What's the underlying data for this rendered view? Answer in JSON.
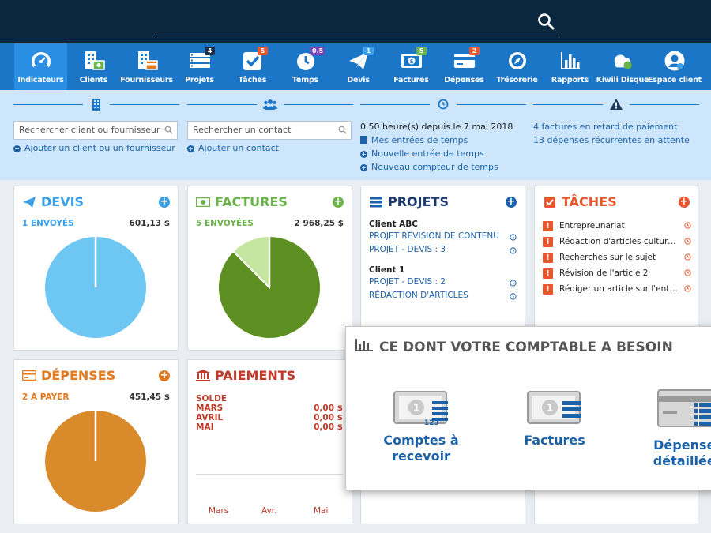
{
  "topbar": {
    "search_icon": "search-icon"
  },
  "nav": {
    "items": [
      {
        "label": "Indicateurs",
        "icon": "gauge-icon",
        "active": true,
        "badge": ""
      },
      {
        "label": "Clients",
        "icon": "building-money-icon",
        "badge": ""
      },
      {
        "label": "Fournisseurs",
        "icon": "building-card-icon",
        "badge": ""
      },
      {
        "label": "Projets",
        "icon": "stack-icon",
        "badge": "4"
      },
      {
        "label": "Tâches",
        "icon": "checkbox-icon",
        "badge": "5"
      },
      {
        "label": "Temps",
        "icon": "clock-icon",
        "badge": "0.5"
      },
      {
        "label": "Devis",
        "icon": "paper-plane-icon",
        "badge": "1"
      },
      {
        "label": "Factures",
        "icon": "invoice-icon",
        "badge": "5"
      },
      {
        "label": "Dépenses",
        "icon": "credit-card-icon",
        "badge": "2"
      },
      {
        "label": "Trésorerie",
        "icon": "compass-icon",
        "badge": ""
      },
      {
        "label": "Rapports",
        "icon": "bar-chart-icon",
        "badge": ""
      },
      {
        "label": "Kiwili Disque",
        "icon": "cloud-icon",
        "badge": ""
      },
      {
        "label": "Espace client",
        "icon": "user-circle-icon",
        "badge": ""
      }
    ],
    "badge_colors": {
      "projets": "#1a2e4a",
      "taches": "#e9552c",
      "temps": "#7b3fb5",
      "devis": "#3ba0e8",
      "factures": "#6ab34a",
      "depenses": "#e9552c"
    }
  },
  "quick": {
    "client_search_placeholder": "Rechercher client ou fournisseur",
    "add_client": "Ajouter un client ou un fournisseur",
    "contact_search_placeholder": "Rechercher un contact",
    "add_contact": "Ajouter un contact",
    "time_summary": "0.50 heure(s) depuis le 7 mai 2018",
    "time_entries": "Mes entrées de temps",
    "new_time_entry": "Nouvelle entrée de temps",
    "new_time_counter": "Nouveau compteur de temps",
    "late_invoices": "4 factures en retard de paiement",
    "recurring_expenses": "13 dépenses récurrentes en attente"
  },
  "devis": {
    "title": "DEVIS",
    "sub": "1 ENVOYÉS",
    "amount": "601,13 $",
    "color": "#3ba0e8"
  },
  "factures": {
    "title": "FACTURES",
    "sub": "5 ENVOYÉES",
    "amount": "2 968,25 $",
    "color": "#6ab34a"
  },
  "projets": {
    "title": "PROJETS",
    "groups": [
      {
        "client": "Client ABC",
        "items": [
          "PROJET RÉVISION DE CONTENU",
          "PROJET - DEVIS : 3"
        ]
      },
      {
        "client": "Client 1",
        "items": [
          "PROJET - DEVIS : 2",
          "RÉDACTION D'ARTICLES"
        ]
      }
    ]
  },
  "taches": {
    "title": "TÂCHES",
    "items": [
      "Entrepreunariat",
      "Rédaction d'articles culturels",
      "Recherches sur le sujet",
      "Révision de l'article 2",
      "Rédiger un article sur l'entreprise"
    ]
  },
  "depenses": {
    "title": "DÉPENSES",
    "sub": "2 À PAYER",
    "amount": "451,45 $",
    "color": "#e07b22"
  },
  "paiements": {
    "title": "PAIEMENTS",
    "rows": [
      {
        "label": "SOLDE",
        "value": ""
      },
      {
        "label": "MARS",
        "value": "0,00 $"
      },
      {
        "label": "AVRIL",
        "value": "0,00 $"
      },
      {
        "label": "MAI",
        "value": "0,00 $"
      }
    ],
    "x_labels": [
      "Mars",
      "Avr.",
      "Mai"
    ]
  },
  "chart_data": [
    {
      "type": "pie",
      "slices": [
        {
          "value": 100,
          "color": "#6ec6f3"
        }
      ]
    },
    {
      "type": "pie",
      "slices": [
        {
          "value": 87.5,
          "color": "#5e8f22"
        },
        {
          "value": 12.5,
          "color": "#c5e6a0"
        }
      ]
    },
    {
      "type": "pie",
      "slices": [
        {
          "value": 100,
          "color": "#d98b2b"
        }
      ]
    }
  ],
  "overlay": {
    "title": "CE DONT VOTRE COMPTABLE A BESOIN",
    "items": [
      {
        "label": "Comptes à\nrecevoir",
        "icon": "receivables-icon"
      },
      {
        "label": "Factures",
        "icon": "invoices-icon"
      },
      {
        "label": "Dépenses\ndétaillées",
        "icon": "detailed-expenses-icon"
      }
    ]
  }
}
